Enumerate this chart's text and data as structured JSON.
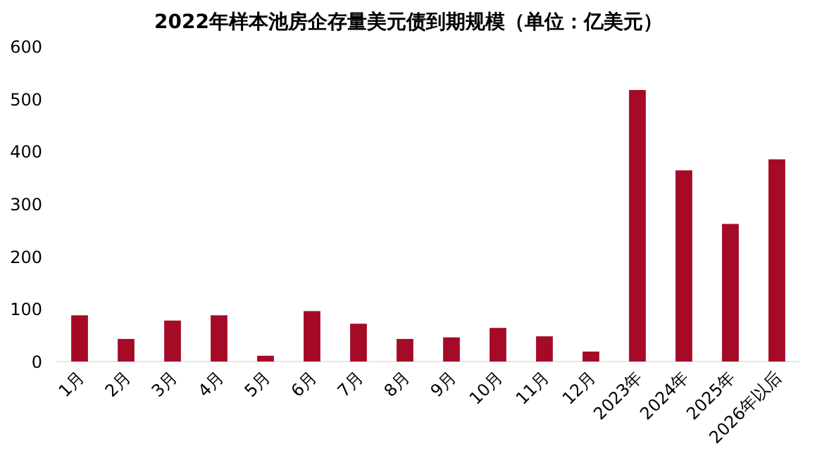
{
  "chart_data": {
    "type": "bar",
    "title": "2022年样本池房企存量美元债到期规模（单位：亿美元）",
    "categories": [
      "1月",
      "2月",
      "3月",
      "4月",
      "5月",
      "6月",
      "7月",
      "8月",
      "9月",
      "10月",
      "11月",
      "12月",
      "2023年",
      "2024年",
      "2025年",
      "2026年以后"
    ],
    "values": [
      88,
      43,
      78,
      88,
      11,
      96,
      72,
      43,
      46,
      64,
      48,
      19,
      517,
      364,
      262,
      385
    ],
    "color": "#a50a27",
    "ylim": [
      0,
      600
    ],
    "yticks": [
      0,
      100,
      200,
      300,
      400,
      500,
      600
    ]
  }
}
